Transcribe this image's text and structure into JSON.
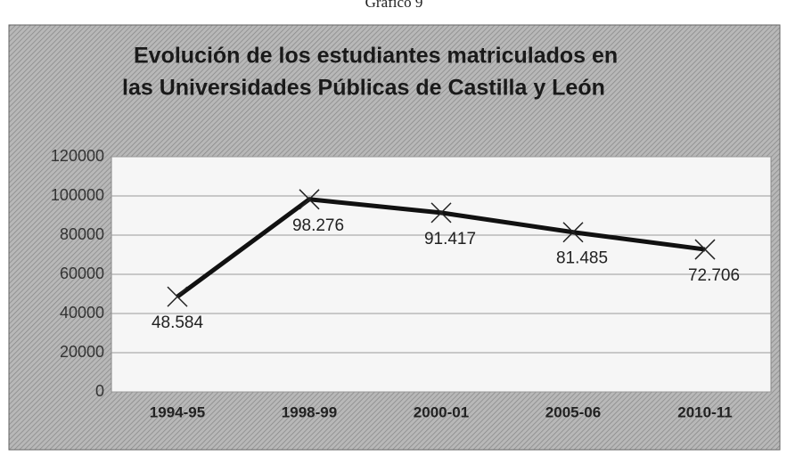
{
  "header": "Gráfico 9",
  "chart_data": {
    "type": "line",
    "title": [
      "Evolución de los estudiantes matriculados en",
      "las Universidades Públicas de Castilla y León"
    ],
    "categories": [
      "1994-95",
      "1998-99",
      "2000-01",
      "2005-06",
      "2010-11"
    ],
    "values": [
      48584,
      98276,
      91417,
      81485,
      72706
    ],
    "value_labels": [
      "48.584",
      "98.276",
      "91.417",
      "81.485",
      "72.706"
    ],
    "color": "#111111",
    "ylim": [
      0,
      120000
    ],
    "yticks": [
      0,
      20000,
      40000,
      60000,
      80000,
      100000,
      120000
    ],
    "grid": true
  }
}
